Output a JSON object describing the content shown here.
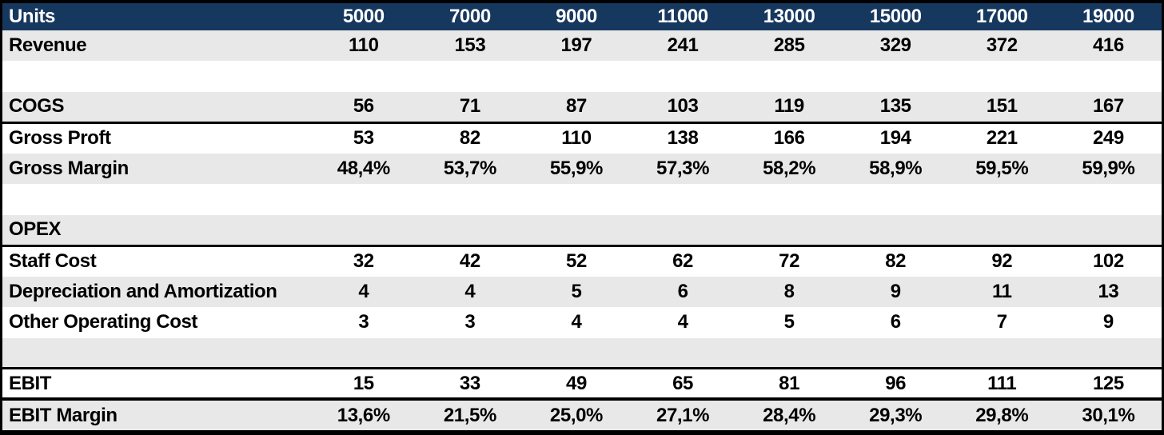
{
  "colors": {
    "header_bg": "#17385E",
    "header_text": "#FFFFFF",
    "row_shade": "#E8E8E8",
    "row_white": "#FFFFFF",
    "border": "#000000",
    "body_text": "#000000"
  },
  "table": {
    "header": {
      "label": "Units",
      "values": [
        "5000",
        "7000",
        "9000",
        "11000",
        "13000",
        "15000",
        "17000",
        "19000"
      ]
    },
    "rows": [
      {
        "label": "Revenue",
        "values": [
          "110",
          "153",
          "197",
          "241",
          "285",
          "329",
          "372",
          "416"
        ],
        "shade": "gray",
        "blank": false,
        "border_bottom": "none"
      },
      {
        "label": "",
        "values": [
          "",
          "",
          "",
          "",
          "",
          "",
          "",
          ""
        ],
        "shade": "white",
        "blank": true,
        "border_bottom": "none"
      },
      {
        "label": "COGS",
        "values": [
          "56",
          "71",
          "87",
          "103",
          "119",
          "135",
          "151",
          "167"
        ],
        "shade": "gray",
        "blank": false,
        "border_bottom": "thin"
      },
      {
        "label": "Gross Proft",
        "values": [
          "53",
          "82",
          "110",
          "138",
          "166",
          "194",
          "221",
          "249"
        ],
        "shade": "white",
        "blank": false,
        "border_bottom": "none"
      },
      {
        "label": "Gross Margin",
        "values": [
          "48,4%",
          "53,7%",
          "55,9%",
          "57,3%",
          "58,2%",
          "58,9%",
          "59,5%",
          "59,9%"
        ],
        "shade": "gray",
        "blank": false,
        "border_bottom": "none"
      },
      {
        "label": "",
        "values": [
          "",
          "",
          "",
          "",
          "",
          "",
          "",
          ""
        ],
        "shade": "white",
        "blank": true,
        "border_bottom": "none"
      },
      {
        "label": "OPEX",
        "values": [
          "",
          "",
          "",
          "",
          "",
          "",
          "",
          ""
        ],
        "shade": "gray",
        "blank": false,
        "border_bottom": "thin"
      },
      {
        "label": "Staff Cost",
        "values": [
          "32",
          "42",
          "52",
          "62",
          "72",
          "82",
          "92",
          "102"
        ],
        "shade": "white",
        "blank": false,
        "border_bottom": "none"
      },
      {
        "label": "Depreciation and Amortization",
        "values": [
          "4",
          "4",
          "5",
          "6",
          "8",
          "9",
          "11",
          "13"
        ],
        "shade": "gray",
        "blank": false,
        "border_bottom": "none"
      },
      {
        "label": "Other Operating Cost",
        "values": [
          "3",
          "3",
          "4",
          "4",
          "5",
          "6",
          "7",
          "9"
        ],
        "shade": "white",
        "blank": false,
        "border_bottom": "none"
      },
      {
        "label": "",
        "values": [
          "",
          "",
          "",
          "",
          "",
          "",
          "",
          ""
        ],
        "shade": "gray",
        "blank": true,
        "border_bottom": "thin"
      },
      {
        "label": "EBIT",
        "values": [
          "15",
          "33",
          "49",
          "65",
          "81",
          "96",
          "111",
          "125"
        ],
        "shade": "white",
        "blank": false,
        "border_bottom": "thick"
      },
      {
        "label": "EBIT Margin",
        "values": [
          "13,6%",
          "21,5%",
          "25,0%",
          "27,1%",
          "28,4%",
          "29,3%",
          "29,8%",
          "30,1%"
        ],
        "shade": "gray",
        "blank": false,
        "border_bottom": "none"
      }
    ]
  }
}
